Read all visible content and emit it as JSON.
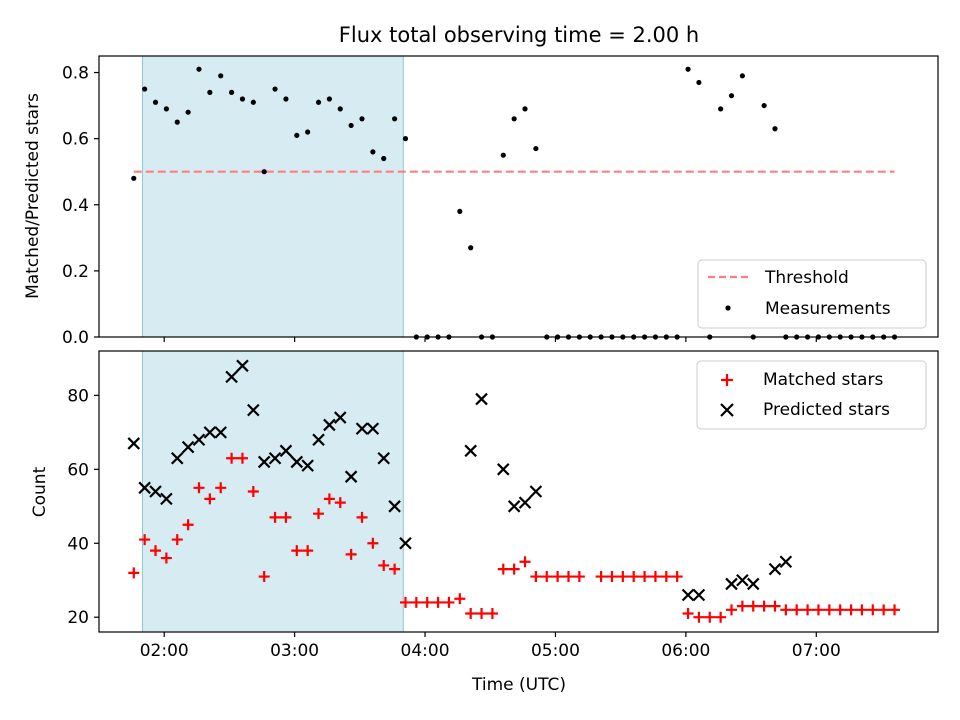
{
  "chart_data": [
    {
      "type": "scatter",
      "title": "Flux total observing time = 2.00 h",
      "xlabel": "",
      "ylabel": "Matched/Predicted stars",
      "xlim": [
        "01:30",
        "07:56"
      ],
      "ylim": [
        0,
        0.85
      ],
      "x_ticks": [
        "02:00",
        "03:00",
        "04:00",
        "05:00",
        "06:00",
        "07:00"
      ],
      "x_tick_labels_visible": false,
      "y_ticks": [
        0.0,
        0.2,
        0.4,
        0.6,
        0.8
      ],
      "y_tick_labels": [
        "0.0",
        "0.2",
        "0.4",
        "0.6",
        "0.8"
      ],
      "legend_position": "lower-right",
      "highlight_span": {
        "start": "01:50",
        "end": "03:50",
        "color": "#add8e6"
      },
      "series": [
        {
          "name": "Threshold",
          "style": "dashed-line",
          "color": "#ff7f7f",
          "x": [
            "01:46",
            "07:36"
          ],
          "y": [
            0.5,
            0.5
          ]
        },
        {
          "name": "Measurements",
          "style": "dot",
          "color": "#000000",
          "x": [
            "01:46",
            "01:51",
            "01:56",
            "02:01",
            "02:06",
            "02:11",
            "02:16",
            "02:21",
            "02:26",
            "02:31",
            "02:36",
            "02:41",
            "02:46",
            "02:51",
            "02:56",
            "03:01",
            "03:06",
            "03:11",
            "03:16",
            "03:21",
            "03:26",
            "03:31",
            "03:36",
            "03:41",
            "03:46",
            "03:51",
            "03:56",
            "04:01",
            "04:06",
            "04:11",
            "04:16",
            "04:21",
            "04:26",
            "04:31",
            "04:36",
            "04:41",
            "04:46",
            "04:51",
            "04:56",
            "05:01",
            "05:06",
            "05:11",
            "05:16",
            "05:21",
            "05:26",
            "05:31",
            "05:36",
            "05:41",
            "05:46",
            "05:51",
            "05:56",
            "06:01",
            "06:06",
            "06:11",
            "06:16",
            "06:21",
            "06:26",
            "06:31",
            "06:36",
            "06:41",
            "06:46",
            "06:51",
            "06:56",
            "07:01",
            "07:06",
            "07:11",
            "07:16",
            "07:21",
            "07:26",
            "07:31",
            "07:36"
          ],
          "y": [
            0.48,
            0.75,
            0.71,
            0.69,
            0.65,
            0.68,
            0.81,
            0.74,
            0.79,
            0.74,
            0.72,
            0.71,
            0.5,
            0.75,
            0.72,
            0.61,
            0.62,
            0.71,
            0.72,
            0.69,
            0.64,
            0.66,
            0.56,
            0.54,
            0.66,
            0.6,
            0.0,
            0.0,
            0.0,
            0.0,
            0.38,
            0.27,
            0.0,
            0.0,
            0.55,
            0.66,
            0.69,
            0.57,
            0.0,
            0.0,
            0.0,
            0.0,
            0.0,
            0.0,
            0.0,
            0.0,
            0.0,
            0.0,
            0.0,
            0.0,
            0.0,
            0.81,
            0.77,
            0.0,
            0.69,
            0.73,
            0.79,
            0.0,
            0.7,
            0.63,
            0.0,
            0.0,
            0.0,
            0.0,
            0.0,
            0.0,
            0.0,
            0.0,
            0.0,
            0.0,
            0.0
          ]
        }
      ]
    },
    {
      "type": "scatter",
      "title": "",
      "xlabel": "Time (UTC)",
      "ylabel": "Count",
      "xlim": [
        "01:30",
        "07:56"
      ],
      "ylim": [
        16,
        92
      ],
      "x_ticks": [
        "02:00",
        "03:00",
        "04:00",
        "05:00",
        "06:00",
        "07:00"
      ],
      "x_tick_labels": [
        "02:00",
        "03:00",
        "04:00",
        "05:00",
        "06:00",
        "07:00"
      ],
      "y_ticks": [
        20,
        40,
        60,
        80
      ],
      "y_tick_labels": [
        "20",
        "40",
        "60",
        "80"
      ],
      "legend_position": "upper-right",
      "highlight_span": {
        "start": "01:50",
        "end": "03:50",
        "color": "#add8e6"
      },
      "series": [
        {
          "name": "Matched stars",
          "style": "plus",
          "color": "#ff0000",
          "x": [
            "01:46",
            "01:51",
            "01:56",
            "02:01",
            "02:06",
            "02:11",
            "02:16",
            "02:21",
            "02:26",
            "02:31",
            "02:36",
            "02:41",
            "02:46",
            "02:51",
            "02:56",
            "03:01",
            "03:06",
            "03:11",
            "03:16",
            "03:21",
            "03:26",
            "03:31",
            "03:36",
            "03:41",
            "03:46",
            "03:51",
            "03:56",
            "04:01",
            "04:06",
            "04:11",
            "04:16",
            "04:21",
            "04:26",
            "04:31",
            "04:36",
            "04:41",
            "04:46",
            "04:51",
            "04:56",
            "05:01",
            "05:06",
            "05:11",
            "05:16",
            "05:21",
            "05:26",
            "05:31",
            "05:36",
            "05:41",
            "05:46",
            "05:51",
            "05:56",
            "06:01",
            "06:06",
            "06:11",
            "06:16",
            "06:21",
            "06:26",
            "06:31",
            "06:36",
            "06:41",
            "06:46",
            "06:51",
            "06:56",
            "07:01",
            "07:06",
            "07:11",
            "07:16",
            "07:21",
            "07:26",
            "07:31",
            "07:36"
          ],
          "y": [
            32,
            41,
            38,
            36,
            41,
            45,
            55,
            52,
            55,
            63,
            63,
            54,
            31,
            47,
            47,
            38,
            38,
            48,
            52,
            51,
            37,
            47,
            40,
            34,
            33,
            24,
            24,
            24,
            24,
            24,
            25,
            21,
            21,
            21,
            33,
            33,
            35,
            31,
            31,
            31,
            31,
            31,
            null,
            31,
            31,
            31,
            31,
            31,
            31,
            31,
            31,
            21,
            20,
            20,
            20,
            22,
            23,
            23,
            23,
            23,
            22,
            22,
            22,
            22,
            22,
            22,
            22,
            22,
            22,
            22,
            22
          ]
        },
        {
          "name": "Predicted stars",
          "style": "x",
          "color": "#000000",
          "x": [
            "01:46",
            "01:51",
            "01:56",
            "02:01",
            "02:06",
            "02:11",
            "02:16",
            "02:21",
            "02:26",
            "02:31",
            "02:36",
            "02:41",
            "02:46",
            "02:51",
            "02:56",
            "03:01",
            "03:06",
            "03:11",
            "03:16",
            "03:21",
            "03:26",
            "03:31",
            "03:36",
            "03:41",
            "03:46",
            "03:51",
            "04:21",
            "04:26",
            "04:36",
            "04:41",
            "04:46",
            "04:51",
            "06:01",
            "06:06",
            "06:21",
            "06:26",
            "06:31",
            "06:41",
            "06:46"
          ],
          "y": [
            67,
            55,
            54,
            52,
            63,
            66,
            68,
            70,
            70,
            85,
            88,
            76,
            62,
            63,
            65,
            62,
            61,
            68,
            72,
            74,
            58,
            71,
            71,
            63,
            50,
            40,
            65,
            79,
            60,
            50,
            51,
            54,
            26,
            26,
            29,
            30,
            29,
            33,
            35
          ]
        }
      ]
    }
  ]
}
